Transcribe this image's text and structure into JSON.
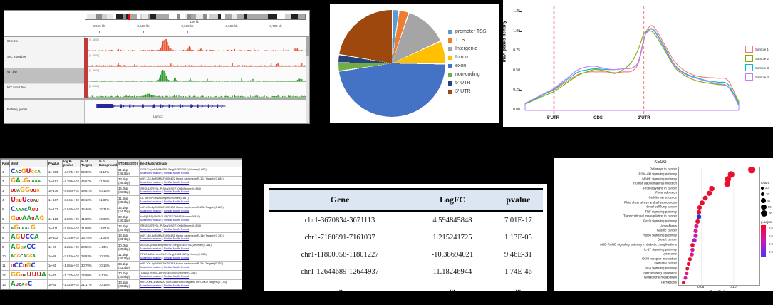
{
  "panels": {
    "igv": {
      "ruler_span_label": "100 kb",
      "ruler_ticks": [
        "3,620 kb",
        "3,640 kb",
        "3,660 kb",
        "3,680 kb",
        "3,700 kb"
      ],
      "tracks": [
        {
          "label": "SIC.bw",
          "scale": "[0 - 5.00]",
          "color": "#e8502d",
          "noise": 0.1,
          "peaks": [
            {
              "x": 0.355,
              "h": 1.0,
              "w": 0.012
            },
            {
              "x": 0.465,
              "h": 0.42,
              "w": 0.005
            },
            {
              "x": 0.52,
              "h": 0.18,
              "w": 0.004
            },
            {
              "x": 0.955,
              "h": 0.14,
              "w": 0.008
            }
          ]
        },
        {
          "label": "SIC input.bw",
          "scale": "[0 - 5.00]",
          "color": "#e8502d",
          "noise": 0.14,
          "peaks": [
            {
              "x": 0.87,
              "h": 0.3,
              "w": 0.004
            }
          ]
        },
        {
          "label": "WT.bw",
          "scale": "[0 - 5.00]",
          "color": "#2b9a2b",
          "noise": 0.1,
          "selected": true,
          "peaks": [
            {
              "x": 0.345,
              "h": 1.0,
              "w": 0.011
            },
            {
              "x": 0.4,
              "h": 0.28,
              "w": 0.005
            },
            {
              "x": 0.47,
              "h": 0.18,
              "w": 0.004
            },
            {
              "x": 0.97,
              "h": 0.22,
              "w": 0.009
            }
          ]
        },
        {
          "label": "WT input.bw",
          "scale": "[0 - 5.00]",
          "color": "#2b9a2b",
          "noise": 0.14,
          "peaks": [
            {
              "x": 0.28,
              "h": 0.18,
              "w": 0.02
            }
          ]
        }
      ],
      "refseq_label": "Refseq genes",
      "gene": {
        "name": "Lamc2",
        "start": 0.04,
        "end": 0.63,
        "utr_end": 0.115,
        "exons": [
          0.15,
          0.19,
          0.25,
          0.3,
          0.33,
          0.37,
          0.42,
          0.47,
          0.5,
          0.55,
          0.59
        ]
      }
    },
    "motif_table": {
      "columns": [
        "Rank",
        "Motif",
        "P-value",
        "log P-pvalue",
        "% of Targets",
        "% of Background",
        "STD(Bg STD)",
        "Best Match/Details"
      ],
      "link1": "More Information",
      "link_sep": " | ",
      "link2": "Similar Motifs Found",
      "rows": [
        {
          "rank": "1",
          "motif": "CacGUgga",
          "pvalue": "1e-203",
          "logp": "-4.674e+02",
          "pct_t": "52.39%",
          "pct_bg": "11.19%",
          "std": "31.1bp (36.2bp)",
          "match": "GGACU(m6A)/MeRIP-Seq(GSE37001)/Homer(0.962)"
        },
        {
          "rank": "2",
          "motif": "GAgGuaaa",
          "pvalue": "1e-191",
          "logp": "-4.398e+02",
          "pct_t": "45.67%",
          "pct_bg": "31.55%",
          "std": "33.5bp (36.3bp)",
          "match": "miR-124-3p/MIMAT0000422 Homo sapiens miR-124 Targets(0.884)"
        },
        {
          "rank": "3",
          "motif": "uuaGGuug",
          "pvalue": "1e-176",
          "logp": "-4.052e+02",
          "pct_t": "49.61%",
          "pct_bg": "40.16%",
          "std": "36.0bp (36.5bp)",
          "match": "SRSF1(SR)/CLIP-Seq(GSE71096)/Homer(0.858)"
        },
        {
          "rank": "4",
          "motif": "UguUcuau",
          "pvalue": "1e-167",
          "logp": "-3.845e+02",
          "pct_t": "39.10%",
          "pct_bg": "11.38%",
          "std": "31.5bp (35.3bp)",
          "match": "U1 snRNP/RNAcompete/Homer(0.847)"
        },
        {
          "rank": "5",
          "motif": "CaaacAuu",
          "pvalue": "1e-132",
          "logp": "-3.040e+02",
          "pct_t": "35.46%",
          "pct_bg": "15.31%",
          "std": "33.1bp (34.1bp)",
          "match": "miR-29b-3p/MIMAT0000100 Homo sapiens miR-29b Targets(0.823)"
        },
        {
          "rank": "6",
          "motif": "GuuAAuAG",
          "pvalue": "1e-123",
          "logp": "-2.832e+02",
          "pct_t": "41.88%",
          "pct_bg": "16.63%",
          "std": "30.0bp (30.3bp)",
          "match": "HuR(ARE)/PAR-CLIP(GSE29943)/Homer(0.816)"
        },
        {
          "rank": "7",
          "motif": "aGcaacG",
          "pvalue": "1e-111",
          "logp": "-2.556e+02",
          "pct_t": "31.98%",
          "pct_bg": "14.01%",
          "std": "33.1bp (34.7bp)",
          "match": "SRSF2(SR)/CLIP-Seq(GSE71096)/Homer(0.804)"
        },
        {
          "rank": "8",
          "motif": "AGUCCA",
          "pvalue": "1e-102",
          "logp": "-2.348e+02",
          "pct_t": "35.75%",
          "pct_bg": "11.05%",
          "std": "33.1bp (33.7bp)",
          "match": "miR-140-5p/MIMAT0000431 Homo sapiens miR-140 Targets(0.793)"
        },
        {
          "rank": "9",
          "motif": "AGgaCC",
          "pvalue": "1e-98",
          "logp": "-2.256e+02",
          "pct_t": "24.55%",
          "pct_bg": "4.63%",
          "std": "30.0bp (30.3bp)",
          "match": "AGGAC(m6A-like)/MeRIP-Seq(GSE37002)/Homer(0.781)"
        },
        {
          "rank": "10",
          "motif": "aggcagga",
          "pvalue": "1e-88",
          "logp": "-2.026e+02",
          "pct_t": "28.93%",
          "pct_bg": "10.13%",
          "std": "31.3bp (30.7bp)",
          "match": "PTBP1(CU-rich)/CLIP-Seq(GSE19323)/Homer(0.766)"
        },
        {
          "rank": "11",
          "motif": "uCCuGC",
          "pvalue": "1e-81",
          "logp": "-1.865e+02",
          "pct_t": "30.79%",
          "pct_bg": "10.16%",
          "std": "33.1bp (33.3bp)",
          "match": "miR-30c-5p/MIMAT0000244 Homo sapiens miR-30c Targets(0.752)"
        },
        {
          "rank": "12",
          "motif": "GGuaUUUA",
          "pvalue": "1e-75",
          "logp": "-1.727e+02",
          "pct_t": "14.99%",
          "pct_bg": "0.91%",
          "std": "30.1bp (30.8bp)",
          "match": "TIA1(U-rich)/iCLIP(GSE28954)/Homer(0.741)"
        },
        {
          "rank": "13",
          "motif": "AucagC",
          "pvalue": "1e-66",
          "logp": "-1.520e+02",
          "pct_t": "21.17%",
          "pct_bg": "10.18%",
          "std": "33.1bp (30.2bp)",
          "match": "miR-200b-3p/MIMAT0000318 Homo sapiens miR-200b Targets(0.733)"
        }
      ]
    },
    "gene_table": {
      "columns": [
        "Gene",
        "LogFC",
        "pvalue"
      ],
      "rows": [
        [
          "chr1-3670834-3671113",
          "4.594845848",
          "7.01E-17"
        ],
        [
          "chr1-7160891-7161037",
          "1.215241725",
          "1.13E-05"
        ],
        [
          "chr1-11800958-11801227",
          "-10.38694021",
          "9.46E-31"
        ],
        [
          "chr1-12644689-12644937",
          "11.18246944",
          "1.74E-46"
        ],
        [
          "...",
          "...",
          "..."
        ]
      ],
      "header_bg": "#dbe6f2"
    }
  },
  "chart_data": [
    {
      "type": "pie",
      "categories": [
        "promoter TSS",
        "TTS",
        "Intergenic",
        "Intron",
        "exon",
        "non-coding",
        "5' UTR",
        "3' UTR"
      ],
      "values": [
        2,
        3,
        13,
        7,
        47.5,
        2.5,
        2.5,
        22.5
      ],
      "colors": [
        "#5B9BD5",
        "#ED7D31",
        "#A5A5A5",
        "#FFC000",
        "#4472C4",
        "#70AD47",
        "#264478",
        "#9E480E"
      ],
      "title": "",
      "legend_position": "right"
    },
    {
      "type": "line",
      "title": "",
      "xlabel_regions": [
        "5'UTR",
        "CDS",
        "3'UTR"
      ],
      "region_label_x": [
        0.135,
        0.345,
        0.56
      ],
      "vlines": [
        0.135,
        0.555
      ],
      "vline_colors": [
        "#dd1111",
        "#f49090"
      ],
      "ylabel": "m6A peaks density",
      "ylim": [
        0,
        1.25
      ],
      "yticks": [
        "0.00",
        "0.25",
        "0.50",
        "0.75",
        "1.00",
        "1.25"
      ],
      "x": [
        0,
        0.05,
        0.1,
        0.135,
        0.2,
        0.25,
        0.3,
        0.33,
        0.38,
        0.42,
        0.46,
        0.5,
        0.53,
        0.555,
        0.57,
        0.6,
        0.65,
        0.7,
        0.75,
        0.8,
        0.85,
        0.9,
        0.95,
        1.0
      ],
      "series": [
        {
          "name": "Sample 1",
          "color": "#F8766D",
          "values": [
            0.08,
            0.15,
            0.22,
            0.26,
            0.38,
            0.46,
            0.49,
            0.49,
            0.49,
            0.48,
            0.49,
            0.5,
            0.6,
            0.88,
            1.02,
            1.07,
            0.85,
            0.62,
            0.5,
            0.44,
            0.42,
            0.41,
            0.38,
            0.1
          ]
        },
        {
          "name": "Sample 2",
          "color": "#7CAE00",
          "values": [
            0.08,
            0.14,
            0.2,
            0.24,
            0.36,
            0.45,
            0.5,
            0.52,
            0.5,
            0.47,
            0.52,
            0.62,
            0.78,
            0.97,
            1.0,
            0.99,
            0.78,
            0.55,
            0.44,
            0.38,
            0.35,
            0.33,
            0.3,
            0.12
          ]
        },
        {
          "name": "Sample 3",
          "color": "#00BFC4",
          "values": [
            0.09,
            0.15,
            0.22,
            0.27,
            0.4,
            0.49,
            0.52,
            0.53,
            0.52,
            0.52,
            0.53,
            0.54,
            0.62,
            0.9,
            1.0,
            1.03,
            0.82,
            0.58,
            0.47,
            0.42,
            0.38,
            0.36,
            0.33,
            0.08
          ]
        },
        {
          "name": "Sample 4",
          "color": "#C77CFF",
          "values": [
            0.09,
            0.16,
            0.23,
            0.28,
            0.42,
            0.52,
            0.56,
            0.56,
            0.53,
            0.52,
            0.53,
            0.54,
            0.62,
            0.9,
            0.99,
            1.02,
            0.8,
            0.57,
            0.46,
            0.41,
            0.37,
            0.34,
            0.3,
            0.06
          ]
        }
      ],
      "baseline_color": "#C77CFF",
      "legend_position": "right"
    },
    {
      "type": "scatter",
      "title": "KEGG",
      "xlabel": "GeneRatio",
      "xticks": [
        "0.05",
        "0.10"
      ],
      "xtick_values": [
        0.05,
        0.1
      ],
      "xlim": [
        0.015,
        0.14
      ],
      "legend_count_title": "Count",
      "legend_count_values": [
        "20",
        "30",
        "40",
        "50",
        "60"
      ],
      "legend_p_title": "p.adjust",
      "legend_p_labels": [
        "0.001",
        "0.002",
        "0.003",
        "0.004"
      ],
      "pathways": [
        {
          "name": "Pathways in cancer",
          "ratio": 0.128,
          "count": 60,
          "color": "#e8112d"
        },
        {
          "name": "PI3K-Akt signaling pathway",
          "ratio": 0.096,
          "count": 52,
          "color": "#e8112d"
        },
        {
          "name": "MAPK signaling pathway",
          "ratio": 0.091,
          "count": 46,
          "color": "#e8112d"
        },
        {
          "name": "Human papillomavirus infection",
          "ratio": 0.09,
          "count": 44,
          "color": "#e8112d"
        },
        {
          "name": "Proteoglycans in cancer",
          "ratio": 0.066,
          "count": 36,
          "color": "#e8112d"
        },
        {
          "name": "Focal adhesion",
          "ratio": 0.062,
          "count": 34,
          "color": "#e8112d"
        },
        {
          "name": "Cellular senescence",
          "ratio": 0.056,
          "count": 30,
          "color": "#e8112d"
        },
        {
          "name": "Fluid shear stress and atherosclerosis",
          "ratio": 0.051,
          "count": 28,
          "color": "#e8112d"
        },
        {
          "name": "Small cell lung cancer",
          "ratio": 0.047,
          "count": 24,
          "color": "#e8112d"
        },
        {
          "name": "TNF signaling pathway",
          "ratio": 0.046,
          "count": 24,
          "color": "#e8112d"
        },
        {
          "name": "Transcriptional misregulation in cancer",
          "ratio": 0.046,
          "count": 26,
          "color": "#2f2fd8"
        },
        {
          "name": "FoxO signaling pathway",
          "ratio": 0.044,
          "count": 24,
          "color": "#e8112d"
        },
        {
          "name": "Amoebiasis",
          "ratio": 0.042,
          "count": 22,
          "color": "#d6208a"
        },
        {
          "name": "Gastric cancer",
          "ratio": 0.041,
          "count": 22,
          "color": "#cf1f96"
        },
        {
          "name": "Hippo signaling pathway",
          "ratio": 0.041,
          "count": 22,
          "color": "#cf1f96"
        },
        {
          "name": "Breast cancer",
          "ratio": 0.039,
          "count": 22,
          "color": "#a21fd0"
        },
        {
          "name": "AGE-RAGE signaling pathway in diabetic complications",
          "ratio": 0.036,
          "count": 20,
          "color": "#e8112d"
        },
        {
          "name": "IL-17 signaling pathway",
          "ratio": 0.036,
          "count": 18,
          "color": "#cf1f96"
        },
        {
          "name": "Lysosome",
          "ratio": 0.035,
          "count": 18,
          "color": "#cf1f96"
        },
        {
          "name": "ECM-receptor interaction",
          "ratio": 0.032,
          "count": 16,
          "color": "#e8112d"
        },
        {
          "name": "Colorectal cancer",
          "ratio": 0.03,
          "count": 16,
          "color": "#e8112d"
        },
        {
          "name": "p53 signaling pathway",
          "ratio": 0.028,
          "count": 14,
          "color": "#e8112d"
        },
        {
          "name": "Platinum drug resistance",
          "ratio": 0.027,
          "count": 14,
          "color": "#d6208a"
        },
        {
          "name": "Glutathione metabolism",
          "ratio": 0.025,
          "count": 12,
          "color": "#cf1f96"
        },
        {
          "name": "Ferroptosis",
          "ratio": 0.022,
          "count": 10,
          "color": "#e8112d"
        }
      ]
    }
  ]
}
